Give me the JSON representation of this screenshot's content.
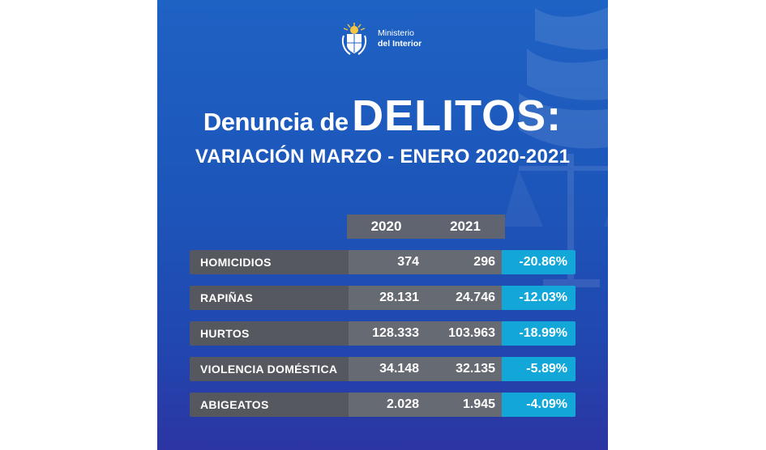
{
  "logo": {
    "line1": "Ministerio",
    "line2": "del Interior"
  },
  "title": {
    "prefix": "Denuncia de",
    "main": "DELITOS:",
    "subtitle": "VARIACIÓN MARZO - ENERO 2020-2021"
  },
  "table": {
    "headers": [
      "2020",
      "2021"
    ],
    "rows": [
      {
        "label": "HOMICIDIOS",
        "y2020": "374",
        "y2021": "296",
        "change": "-20.86%"
      },
      {
        "label": "RAPIÑAS",
        "y2020": "28.131",
        "y2021": "24.746",
        "change": "-12.03%"
      },
      {
        "label": "HURTOS",
        "y2020": "128.333",
        "y2021": "103.963",
        "change": "-18.99%"
      },
      {
        "label": "VIOLENCIA DOMÉSTICA",
        "y2020": "34.148",
        "y2021": "32.135",
        "change": "-5.89%"
      },
      {
        "label": "ABIGEATOS",
        "y2020": "2.028",
        "y2021": "1.945",
        "change": "-4.09%"
      }
    ]
  },
  "colors": {
    "background": "#1e62c4",
    "label_cell": "#55585f",
    "value_cell": "#666a72",
    "change_cell": "#12a7d8"
  }
}
